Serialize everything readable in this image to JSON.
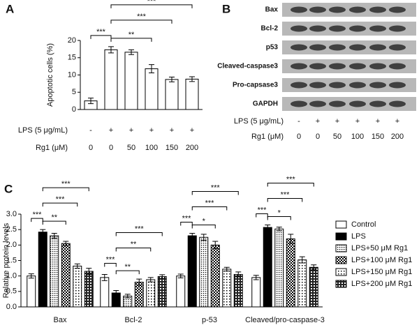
{
  "chart_data": [
    {
      "type": "bar",
      "panel_label": "A",
      "y_label": "Apoptotic cells (%)",
      "values": [
        2.5,
        17.3,
        16.6,
        11.8,
        8.7,
        8.8
      ],
      "errors": [
        0.8,
        0.9,
        0.7,
        1.2,
        0.7,
        0.7
      ],
      "color": "#ffffff",
      "ylim": [
        0,
        20
      ],
      "yticks": [
        0,
        5,
        10,
        15,
        20
      ],
      "annotations": [
        "***",
        "**",
        "***",
        "***"
      ],
      "conditions": [
        {
          "name": "LPS (5 μg/mL)",
          "values": [
            "-",
            "+",
            "+",
            "+",
            "+",
            "+"
          ]
        },
        {
          "name": "Rg1 (μM)",
          "values": [
            "0",
            "0",
            "50",
            "100",
            "150",
            "200"
          ]
        }
      ]
    },
    {
      "type": "grouped-bar",
      "panel_label": "C",
      "y_label": "Relative protein levels",
      "categories": [
        "Bax",
        "Bcl-2",
        "p-53",
        "Cleaved/pro-caspase-3"
      ],
      "ylim": [
        0,
        3
      ],
      "yticks": [
        {
          "value": 0,
          "label": "0.0"
        },
        0.5,
        {
          "value": 1,
          "label": "1.0"
        },
        1.5,
        {
          "value": 2,
          "label": "2.0"
        },
        2.5,
        {
          "value": 3,
          "label": "3.0"
        }
      ],
      "series": [
        {
          "name": "Control",
          "color": "#ffffff",
          "pattern": "solid",
          "values": [
            1.0,
            0.95,
            1.0,
            0.95
          ],
          "errors": [
            0.07,
            0.1,
            0.06,
            0.07
          ]
        },
        {
          "name": "LPS",
          "color": "#000000",
          "pattern": "solid",
          "values": [
            2.42,
            0.45,
            2.3,
            2.57
          ],
          "errors": [
            0.08,
            0.08,
            0.08,
            0.08
          ]
        },
        {
          "name": "LPS+50 μM Rg1",
          "color": "#000000",
          "pattern": "dots",
          "values": [
            2.3,
            0.35,
            2.25,
            2.52
          ],
          "errors": [
            0.08,
            0.06,
            0.1,
            0.06
          ]
        },
        {
          "name": "LPS+100 μM Rg1",
          "color": "#000000",
          "pattern": "checker",
          "values": [
            2.05,
            0.8,
            2.0,
            2.2
          ],
          "errors": [
            0.07,
            0.1,
            0.12,
            0.15
          ]
        },
        {
          "name": "LPS+150 μM Rg1",
          "color": "#000000",
          "pattern": "sparse",
          "values": [
            1.32,
            0.88,
            1.22,
            1.52
          ],
          "errors": [
            0.07,
            0.07,
            0.06,
            0.1
          ]
        },
        {
          "name": "LPS+200 μM Rg1",
          "color": "#000000",
          "pattern": "grid",
          "values": [
            1.15,
            0.98,
            1.05,
            1.28
          ],
          "errors": [
            0.1,
            0.06,
            0.08,
            0.08
          ]
        }
      ],
      "annotations": [
        [
          "***",
          "**",
          "***",
          "***"
        ],
        [
          "***",
          "**",
          "**",
          "***"
        ],
        [
          "***",
          "*",
          "***",
          "***"
        ],
        [
          "***",
          "*",
          "***",
          "***"
        ]
      ]
    }
  ],
  "blot": {
    "panel_label": "B",
    "proteins": [
      "Bax",
      "Bcl-2",
      "p53",
      "Cleaved-caspase3",
      "Pro-capsase3",
      "GAPDH"
    ],
    "conditions": [
      {
        "name": "LPS (5 μg/mL)",
        "values": [
          "-",
          "+",
          "+",
          "+",
          "+",
          "+"
        ]
      },
      {
        "name": "Rg1 (μM)",
        "values": [
          "0",
          "0",
          "50",
          "100",
          "150",
          "200"
        ]
      }
    ]
  }
}
